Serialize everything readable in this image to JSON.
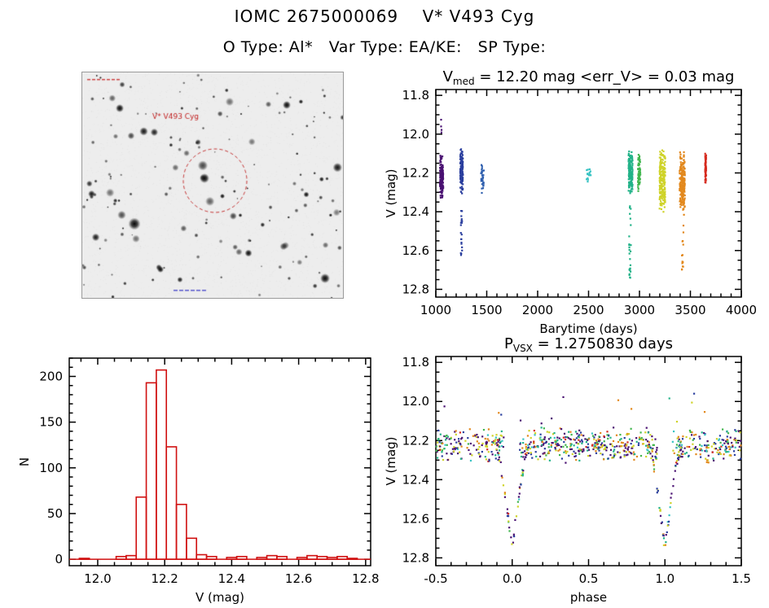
{
  "page": {
    "title": "IOMC 2675000069    V* V493 Cyg",
    "subtitle": "O Type: Al*   Var Type: EA/KE:   SP Type:"
  },
  "finding_chart": {
    "star_label": "V* V493 Cyg",
    "label_color": "#c22222",
    "circle_color": "#c43030"
  },
  "chart_data": [
    {
      "id": "lightcurve",
      "type": "scatter",
      "title_parts": [
        {
          "t": "V"
        },
        {
          "t": "med",
          "sub": true
        },
        {
          "t": " = 12.20 mag <err_V> = 0.03 mag"
        }
      ],
      "median_v_mag": 12.2,
      "err_v_mag": 0.03,
      "xlabel": "Barytime (days)",
      "ylabel": "V (mag)",
      "xlim": [
        1000,
        4000
      ],
      "ylim": [
        12.84,
        11.77
      ],
      "xticks": {
        "major": [
          1000,
          1500,
          2000,
          2500,
          3000,
          3500,
          4000
        ],
        "labels": [
          "1000",
          "1500",
          "2000",
          "2500",
          "3000",
          "3500",
          "4000"
        ],
        "minor": 100
      },
      "yticks": {
        "major": [
          11.8,
          12.0,
          12.2,
          12.4,
          12.6,
          12.8
        ],
        "labels": [
          "11.8",
          "12.0",
          "12.2",
          "12.4",
          "12.6",
          "12.8"
        ],
        "minor": 0.05
      },
      "groups": [
        {
          "name": "epoch-1060",
          "color": "#4a1272",
          "x": 1057,
          "xs": 16,
          "n": 150,
          "y0": 12.1,
          "y1": 12.34
        },
        {
          "name": "epoch-1060-bright",
          "color": "#4a1272",
          "x": 1052,
          "xs": 6,
          "n": 4,
          "y0": 11.92,
          "y1": 12.08,
          "dist": "uniform"
        },
        {
          "name": "epoch-1250",
          "color": "#2b3f9e",
          "x": 1253,
          "xs": 13,
          "n": 130,
          "y0": 12.06,
          "y1": 12.31
        },
        {
          "name": "epoch-1250-eclipse",
          "color": "#2b3f9e",
          "x": 1252,
          "xs": 7,
          "n": 20,
          "y0": 12.31,
          "y1": 12.63,
          "dist": "uniform"
        },
        {
          "name": "epoch-1460",
          "color": "#2f5fae",
          "x": 1458,
          "xs": 14,
          "n": 34,
          "y0": 12.12,
          "y1": 12.31
        },
        {
          "name": "epoch-2500",
          "color": "#38c3c3",
          "x": 2505,
          "xs": 24,
          "n": 16,
          "y0": 12.16,
          "y1": 12.25
        },
        {
          "name": "epoch-2910",
          "color": "#23b389",
          "x": 2912,
          "xs": 20,
          "n": 150,
          "y0": 12.08,
          "y1": 12.32
        },
        {
          "name": "epoch-2910-eclipse",
          "color": "#23b389",
          "x": 2908,
          "xs": 9,
          "n": 12,
          "y0": 12.33,
          "y1": 12.6,
          "dist": "uniform"
        },
        {
          "name": "epoch-2910-eclipse-deep",
          "color": "#23b389",
          "x": 2906,
          "xs": 7,
          "n": 14,
          "y0": 12.6,
          "y1": 12.75,
          "dist": "uniform"
        },
        {
          "name": "epoch-3000",
          "color": "#41b64e",
          "x": 2997,
          "xs": 12,
          "n": 60,
          "y0": 12.1,
          "y1": 12.3
        },
        {
          "name": "epoch-3220",
          "color": "#cfd32a",
          "x": 3225,
          "xs": 28,
          "n": 210,
          "y0": 12.06,
          "y1": 12.42
        },
        {
          "name": "epoch-3420",
          "color": "#e2881d",
          "x": 3420,
          "xs": 26,
          "n": 200,
          "y0": 12.08,
          "y1": 12.43
        },
        {
          "name": "epoch-3420-eclipse",
          "color": "#e2881d",
          "x": 3424,
          "xs": 8,
          "n": 14,
          "y0": 12.45,
          "y1": 12.72,
          "dist": "uniform"
        },
        {
          "name": "epoch-3650",
          "color": "#d62b1f",
          "x": 3650,
          "xs": 5,
          "n": 80,
          "y0": 12.08,
          "y1": 12.26
        }
      ]
    },
    {
      "id": "histogram",
      "type": "bar",
      "xlabel": "V (mag)",
      "ylabel": "N",
      "xlim": [
        11.915,
        12.815
      ],
      "ylim": [
        -7,
        220
      ],
      "xticks": {
        "major": [
          12.0,
          12.2,
          12.4,
          12.6,
          12.8
        ],
        "labels": [
          "12.0",
          "12.2",
          "12.4",
          "12.6",
          "12.8"
        ],
        "minor": 0.05
      },
      "yticks": {
        "major": [
          0,
          50,
          100,
          150,
          200
        ],
        "labels": [
          "0",
          "50",
          "100",
          "150",
          "200"
        ],
        "minor": 10
      },
      "bar_color": "#d01010",
      "bin_width": 0.03,
      "bins": [
        [
          11.945,
          1
        ],
        [
          12.055,
          3
        ],
        [
          12.085,
          4
        ],
        [
          12.115,
          68
        ],
        [
          12.145,
          193
        ],
        [
          12.175,
          207
        ],
        [
          12.205,
          123
        ],
        [
          12.235,
          60
        ],
        [
          12.265,
          23
        ],
        [
          12.295,
          5
        ],
        [
          12.325,
          3
        ],
        [
          12.385,
          2
        ],
        [
          12.415,
          3
        ],
        [
          12.475,
          2
        ],
        [
          12.505,
          4
        ],
        [
          12.535,
          3
        ],
        [
          12.595,
          2
        ],
        [
          12.625,
          4
        ],
        [
          12.655,
          3
        ],
        [
          12.685,
          2
        ],
        [
          12.715,
          3
        ],
        [
          12.745,
          1
        ]
      ]
    },
    {
      "id": "phase",
      "type": "scatter",
      "title_parts": [
        {
          "t": "P"
        },
        {
          "t": "VSX",
          "sub": true
        },
        {
          "t": " = 1.2750830 days"
        }
      ],
      "period_days": 1.275083,
      "xlabel": "phase",
      "ylabel": "V (mag)",
      "xlim": [
        -0.5,
        1.5
      ],
      "ylim": [
        12.84,
        11.77
      ],
      "xticks": {
        "major": [
          -0.5,
          0.0,
          0.5,
          1.0,
          1.5
        ],
        "labels": [
          "-0.5",
          "0.0",
          "0.5",
          "1.0",
          "1.5"
        ],
        "minor": 0.1
      },
      "yticks": {
        "major": [
          11.8,
          12.0,
          12.2,
          12.4,
          12.6,
          12.8
        ],
        "labels": [
          "11.8",
          "12.0",
          "12.2",
          "12.4",
          "12.6",
          "12.8"
        ],
        "minor": 0.05
      },
      "palette": [
        [
          "#4a1272",
          5
        ],
        [
          "#2b3f9e",
          3
        ],
        [
          "#23b389",
          2
        ],
        [
          "#41b64e",
          2
        ],
        [
          "#cfd32a",
          3
        ],
        [
          "#e2881d",
          3
        ],
        [
          "#38c3c3",
          1.5
        ],
        [
          "#d62b1f",
          1
        ]
      ],
      "band": {
        "x0": -0.5,
        "x1": 1.5,
        "n": 700,
        "y0": 12.13,
        "y1": 12.32,
        "gap": 0.05
      },
      "eclipses": [
        {
          "cx": 0.0,
          "hw": 0.11,
          "top": 12.22,
          "deep": 12.76,
          "n": 60
        },
        {
          "cx": 1.0,
          "hw": 0.11,
          "top": 12.22,
          "deep": 12.76,
          "n": 60
        }
      ],
      "outliers": {
        "n": 14,
        "x0": -0.45,
        "x1": 1.45,
        "y0": 11.96,
        "y1": 12.12
      }
    }
  ]
}
